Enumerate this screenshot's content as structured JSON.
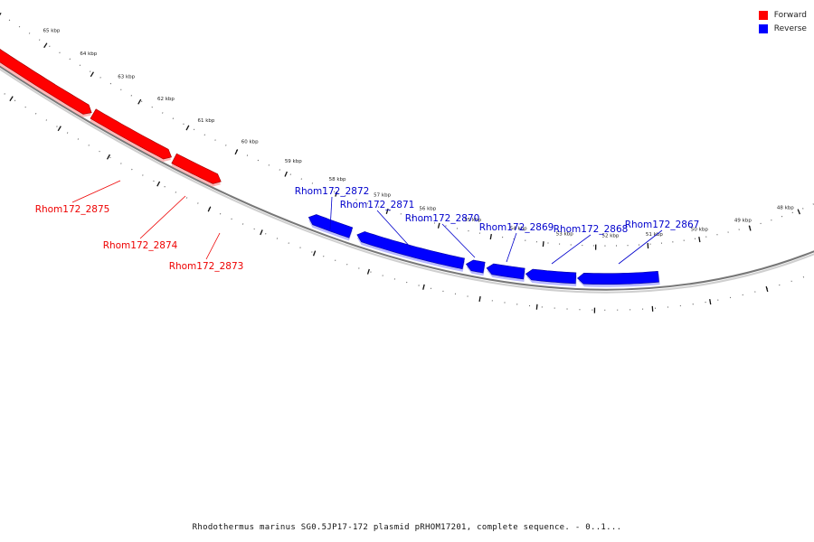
{
  "legend": [
    {
      "label": "Forward",
      "color": "#ff0000"
    },
    {
      "label": "Reverse",
      "color": "#0000ff"
    }
  ],
  "caption": "Rhodothermus marinus SG0.5JP17-172 plasmid pRHOM17201, complete sequence. - 0..1...",
  "kbp_labels": [
    "65 kbp",
    "64 kbp",
    "63 kbp",
    "62 kbp",
    "61 kbp",
    "60 kbp",
    "59 kbp",
    "58 kbp",
    "57 kbp",
    "56 kbp",
    "55 kbp",
    "54 kbp",
    "53 kbp",
    "52 kbp",
    "51 kbp",
    "50 kbp",
    "49 kbp",
    "48 kbp"
  ],
  "genes": [
    {
      "name": "Rhom172_2875",
      "strand": "forward"
    },
    {
      "name": "Rhom172_2874",
      "strand": "forward"
    },
    {
      "name": "Rhom172_2873",
      "strand": "forward"
    },
    {
      "name": "Rhom172_2872",
      "strand": "reverse"
    },
    {
      "name": "Rhom172_2871",
      "strand": "reverse"
    },
    {
      "name": "Rhom172_2870",
      "strand": "reverse"
    },
    {
      "name": "Rhom172_2869",
      "strand": "reverse"
    },
    {
      "name": "Rhom172_2868",
      "strand": "reverse"
    },
    {
      "name": "Rhom172_2867",
      "strand": "reverse"
    }
  ]
}
